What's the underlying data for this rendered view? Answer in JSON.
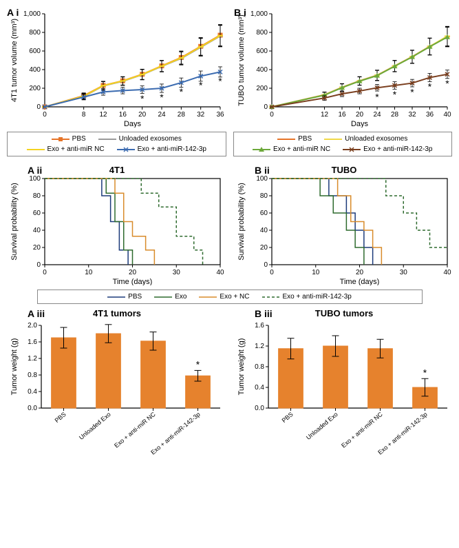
{
  "colors": {
    "pbs": "#e67428",
    "unloaded": "#9a9a9a",
    "nc": "#f4d320",
    "anti142": "#3b6bb0",
    "tubo_pbs": "#e67428",
    "tubo_unloaded": "#f0d848",
    "tubo_nc": "#6ca83a",
    "tubo_anti142": "#7a3f1f",
    "axis": "#000000",
    "bar": "#e6822d",
    "grid": "#000000"
  },
  "panelA_i": {
    "label": "A i",
    "ylabel": "4T1 tumor volume (mm³)",
    "xlabel": "Days",
    "xlim": [
      0,
      36
    ],
    "ylim": [
      0,
      1000
    ],
    "xticks": [
      0,
      8,
      12,
      16,
      20,
      24,
      28,
      32,
      36
    ],
    "yticks": [
      0,
      200,
      400,
      600,
      800,
      1000
    ],
    "series": {
      "pbs": {
        "x": [
          0,
          8,
          12,
          16,
          20,
          24,
          28,
          32,
          36
        ],
        "y": [
          0,
          120,
          230,
          280,
          350,
          440,
          530,
          650,
          770
        ],
        "err": [
          0,
          30,
          45,
          45,
          55,
          60,
          70,
          95,
          115
        ]
      },
      "unloaded": {
        "x": [
          0,
          8,
          12,
          16,
          20,
          24,
          28,
          32,
          36
        ],
        "y": [
          0,
          110,
          225,
          275,
          345,
          435,
          520,
          640,
          760
        ],
        "err": [
          0,
          30,
          45,
          45,
          55,
          60,
          70,
          95,
          115
        ]
      },
      "nc": {
        "x": [
          0,
          8,
          12,
          16,
          20,
          24,
          28,
          32,
          36
        ],
        "y": [
          0,
          115,
          228,
          278,
          348,
          438,
          525,
          645,
          765
        ],
        "err": [
          0,
          30,
          45,
          45,
          55,
          60,
          70,
          95,
          115
        ]
      },
      "anti142": {
        "x": [
          0,
          8,
          12,
          16,
          20,
          24,
          28,
          32,
          36
        ],
        "y": [
          0,
          105,
          160,
          175,
          185,
          200,
          260,
          330,
          375
        ],
        "err": [
          0,
          30,
          35,
          35,
          40,
          45,
          50,
          55,
          55
        ]
      }
    },
    "sig_x": [
      20,
      24,
      28,
      32,
      36
    ]
  },
  "panelB_i": {
    "label": "B i",
    "ylabel": "TUBO tumor volume (mm³)",
    "xlabel": "Days",
    "xlim": [
      0,
      40
    ],
    "ylim": [
      0,
      1000
    ],
    "xticks": [
      0,
      12,
      16,
      20,
      24,
      28,
      32,
      36,
      40
    ],
    "yticks": [
      0,
      200,
      400,
      600,
      800,
      1000
    ],
    "series": {
      "pbs": {
        "x": [
          0,
          12,
          16,
          20,
          24,
          28,
          32,
          36,
          40
        ],
        "y": [
          0,
          130,
          210,
          280,
          340,
          440,
          540,
          650,
          755
        ],
        "err": [
          0,
          30,
          40,
          45,
          55,
          60,
          70,
          90,
          105
        ]
      },
      "unloaded": {
        "x": [
          0,
          12,
          16,
          20,
          24,
          28,
          32,
          36,
          40
        ],
        "y": [
          0,
          128,
          208,
          278,
          338,
          438,
          538,
          648,
          760
        ],
        "err": [
          0,
          30,
          40,
          45,
          55,
          60,
          70,
          90,
          105
        ]
      },
      "nc": {
        "x": [
          0,
          12,
          16,
          20,
          24,
          28,
          32,
          36,
          40
        ],
        "y": [
          0,
          126,
          206,
          276,
          336,
          436,
          536,
          646,
          750
        ],
        "err": [
          0,
          30,
          40,
          45,
          55,
          60,
          70,
          90,
          105
        ]
      },
      "anti142": {
        "x": [
          0,
          12,
          16,
          20,
          24,
          28,
          32,
          36,
          40
        ],
        "y": [
          0,
          95,
          140,
          170,
          205,
          230,
          255,
          315,
          350
        ],
        "err": [
          0,
          25,
          30,
          30,
          35,
          40,
          40,
          45,
          45
        ]
      }
    },
    "sig_x": [
      24,
      28,
      32,
      36,
      40
    ]
  },
  "legend1": {
    "items": [
      {
        "label": "PBS",
        "key": "pbs"
      },
      {
        "label": "Unloaded exosomes",
        "key": "unloaded"
      },
      {
        "label": "Exo + anti-miR NC",
        "key": "nc"
      },
      {
        "label": "Exo + anti-miR-142-3p",
        "key": "anti142"
      }
    ]
  },
  "legend1B_colors": {
    "pbs": "tubo_pbs",
    "unloaded": "tubo_unloaded",
    "nc": "tubo_nc",
    "anti142": "tubo_anti142"
  },
  "panelA_ii": {
    "label": "A ii",
    "title": "4T1",
    "ylabel": "Survival probability (%)",
    "xlabel": "Time (days)",
    "xlim": [
      0,
      40
    ],
    "ylim": [
      0,
      100
    ],
    "xticks": [
      0,
      10,
      20,
      30,
      40
    ],
    "yticks": [
      0,
      20,
      40,
      60,
      80,
      100
    ],
    "series": {
      "pbs": {
        "steps": [
          [
            0,
            100
          ],
          [
            13,
            100
          ],
          [
            13,
            80
          ],
          [
            15,
            80
          ],
          [
            15,
            50
          ],
          [
            17,
            50
          ],
          [
            17,
            17
          ],
          [
            19,
            17
          ],
          [
            19,
            0
          ]
        ]
      },
      "exo": {
        "steps": [
          [
            0,
            100
          ],
          [
            14,
            100
          ],
          [
            14,
            83
          ],
          [
            16,
            83
          ],
          [
            16,
            50
          ],
          [
            18,
            50
          ],
          [
            18,
            17
          ],
          [
            20,
            17
          ],
          [
            20,
            0
          ]
        ]
      },
      "nc": {
        "steps": [
          [
            0,
            100
          ],
          [
            16,
            100
          ],
          [
            16,
            83
          ],
          [
            18,
            83
          ],
          [
            18,
            50
          ],
          [
            20,
            50
          ],
          [
            20,
            33
          ],
          [
            23,
            33
          ],
          [
            23,
            17
          ],
          [
            25,
            17
          ],
          [
            25,
            0
          ]
        ]
      },
      "anti142": {
        "steps": [
          [
            0,
            100
          ],
          [
            22,
            100
          ],
          [
            22,
            83
          ],
          [
            26,
            83
          ],
          [
            26,
            67
          ],
          [
            30,
            67
          ],
          [
            30,
            33
          ],
          [
            34,
            33
          ],
          [
            34,
            17
          ],
          [
            36,
            17
          ],
          [
            36,
            0
          ]
        ]
      }
    }
  },
  "panelB_ii": {
    "label": "B ii",
    "title": "TUBO",
    "ylabel": "Survival probability (%)",
    "xlabel": "Time (days)",
    "xlim": [
      0,
      40
    ],
    "ylim": [
      0,
      100
    ],
    "xticks": [
      0,
      10,
      20,
      30,
      40
    ],
    "yticks": [
      0,
      20,
      40,
      60,
      80,
      100
    ],
    "series": {
      "pbs": {
        "steps": [
          [
            0,
            100
          ],
          [
            13,
            100
          ],
          [
            13,
            80
          ],
          [
            17,
            80
          ],
          [
            17,
            60
          ],
          [
            19,
            60
          ],
          [
            19,
            40
          ],
          [
            21,
            40
          ],
          [
            21,
            20
          ],
          [
            23,
            20
          ],
          [
            23,
            0
          ]
        ]
      },
      "exo": {
        "steps": [
          [
            0,
            100
          ],
          [
            11,
            100
          ],
          [
            11,
            80
          ],
          [
            14,
            80
          ],
          [
            14,
            60
          ],
          [
            17,
            60
          ],
          [
            17,
            40
          ],
          [
            19,
            40
          ],
          [
            19,
            20
          ],
          [
            21,
            20
          ],
          [
            21,
            0
          ]
        ]
      },
      "nc": {
        "steps": [
          [
            0,
            100
          ],
          [
            15,
            100
          ],
          [
            15,
            80
          ],
          [
            18,
            80
          ],
          [
            18,
            50
          ],
          [
            21,
            50
          ],
          [
            21,
            40
          ],
          [
            23,
            40
          ],
          [
            23,
            20
          ],
          [
            25,
            20
          ],
          [
            25,
            0
          ]
        ]
      },
      "anti142": {
        "steps": [
          [
            0,
            100
          ],
          [
            26,
            100
          ],
          [
            26,
            80
          ],
          [
            30,
            80
          ],
          [
            30,
            60
          ],
          [
            33,
            60
          ],
          [
            33,
            40
          ],
          [
            36,
            40
          ],
          [
            36,
            20
          ],
          [
            40,
            20
          ]
        ]
      }
    }
  },
  "legend2": {
    "items": [
      {
        "label": "PBS",
        "color": "#1b3a7a",
        "dash": "none"
      },
      {
        "label": "Exo",
        "color": "#2d6a2d",
        "dash": "none"
      },
      {
        "label": "Exo + NC",
        "color": "#d88b2a",
        "dash": "none"
      },
      {
        "label": "Exo + anti-miR-142-3p",
        "color": "#2d6a2d",
        "dash": "4,3"
      }
    ]
  },
  "panelA_iii": {
    "label": "A iii",
    "title": "4T1 tumors",
    "ylabel": "Tumor weight (g)",
    "ylim": [
      0,
      2.0
    ],
    "yticks": [
      0.0,
      0.4,
      0.8,
      1.2,
      1.6,
      2.0
    ],
    "cats": [
      "PBS",
      "Unloaded Exo",
      "Exo + anti-miR NC",
      "Exo + anti-miR-142-3p"
    ],
    "vals": [
      1.7,
      1.8,
      1.62,
      0.78
    ],
    "errs": [
      0.25,
      0.22,
      0.22,
      0.13
    ],
    "sig": [
      false,
      false,
      false,
      true
    ]
  },
  "panelB_iii": {
    "label": "B iii",
    "title": "TUBO tumors",
    "ylabel": "Tumor weight (g)",
    "ylim": [
      0,
      1.6
    ],
    "yticks": [
      0.0,
      0.4,
      0.8,
      1.2,
      1.6
    ],
    "cats": [
      "PBS",
      "Unloaded Exo",
      "Exo + anti-miR NC",
      "Exo + anti-miR-142-3p"
    ],
    "vals": [
      1.15,
      1.2,
      1.15,
      0.4
    ],
    "errs": [
      0.2,
      0.2,
      0.18,
      0.17
    ],
    "sig": [
      false,
      false,
      false,
      true
    ]
  },
  "labels": {
    "star": "*"
  }
}
